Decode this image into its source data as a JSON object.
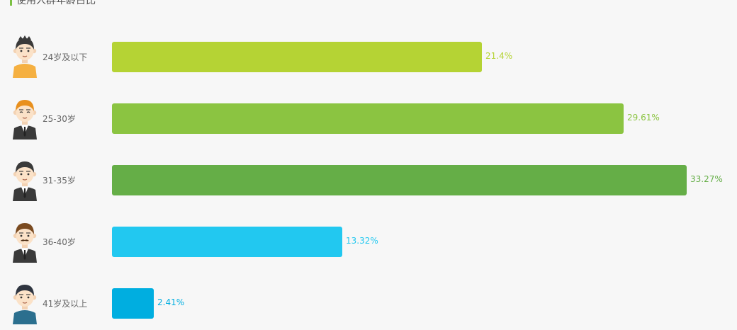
{
  "chart_data": {
    "type": "bar",
    "orientation": "horizontal",
    "title": "使用人群年龄占比",
    "categories": [
      "24岁及以下",
      "25-30岁",
      "31-35岁",
      "36-40岁",
      "41岁及以上"
    ],
    "values": [
      21.4,
      29.61,
      33.27,
      13.32,
      2.41
    ],
    "value_labels": [
      "21.4%",
      "29.61%",
      "33.27%",
      "13.32%",
      "2.41%"
    ],
    "unit": "%",
    "xlim": [
      0,
      33.27
    ],
    "colors": [
      "#b5d334",
      "#8bc441",
      "#65ae47",
      "#22c8f0",
      "#00aee0"
    ],
    "grid": false,
    "legend": "none",
    "avatars": [
      "young-man-avatar-icon",
      "orange-hair-man-avatar-icon",
      "suit-man-avatar-icon",
      "mustache-man-avatar-icon",
      "older-man-avatar-icon"
    ]
  }
}
